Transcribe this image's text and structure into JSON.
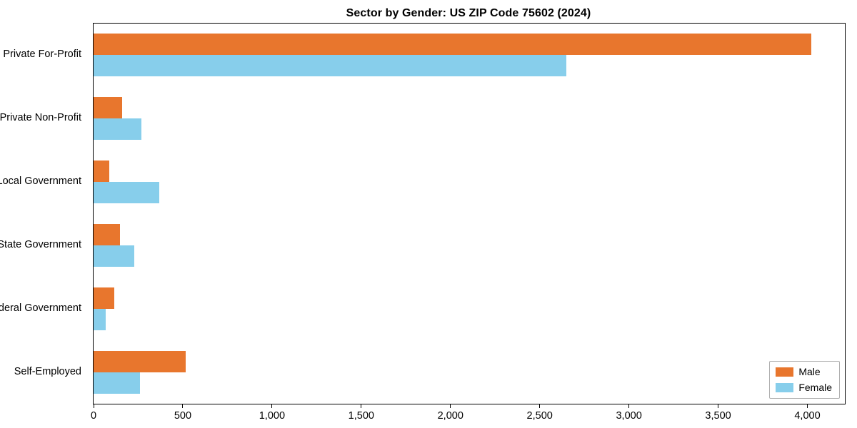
{
  "chart_data": {
    "type": "bar",
    "orientation": "horizontal",
    "title": "Sector by Gender: US ZIP Code 75602 (2024)",
    "categories": [
      "Private For-Profit",
      "Private Non-Profit",
      "Local Government",
      "State Government",
      "Federal Government",
      "Self-Employed"
    ],
    "series": [
      {
        "name": "Male",
        "color": "#e8762d",
        "values": [
          4020,
          160,
          90,
          150,
          115,
          515
        ]
      },
      {
        "name": "Female",
        "color": "#87ceeb",
        "values": [
          2650,
          270,
          370,
          230,
          70,
          260
        ]
      }
    ],
    "xlim": [
      0,
      4210
    ],
    "xticks": [
      0,
      500,
      1000,
      1500,
      2000,
      2500,
      3000,
      3500,
      4000
    ],
    "xtick_labels": [
      "0",
      "500",
      "1,000",
      "1,500",
      "2,000",
      "2,500",
      "3,000",
      "3,500",
      "4,000"
    ],
    "xlabel": "",
    "ylabel": "",
    "grid": false,
    "legend_position": "lower right",
    "background_color": "#ffffff",
    "axis_color": "#000000"
  }
}
